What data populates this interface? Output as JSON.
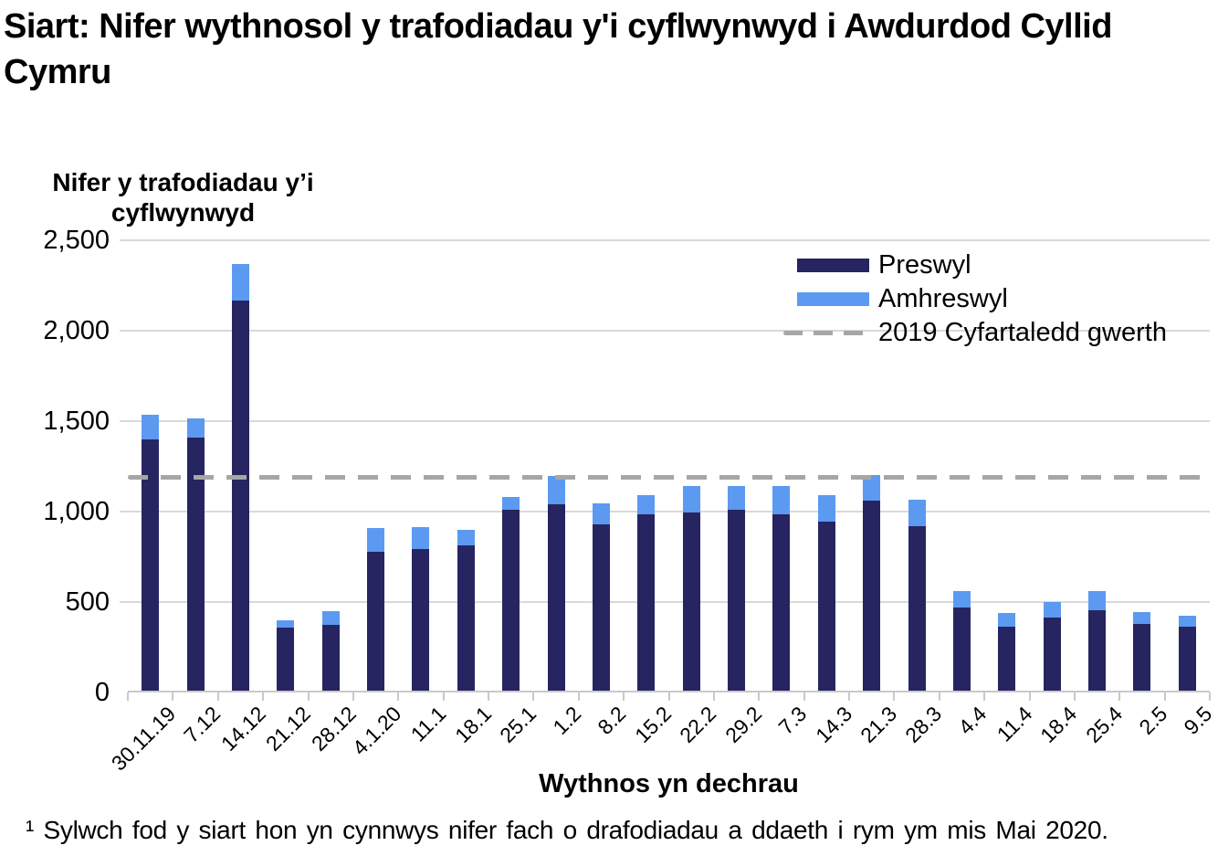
{
  "title": "Siart: Nifer wythnosol y trafodiadau y'i cyflwynwyd i Awdurdod Cyllid Cymru",
  "y_axis": {
    "label_line1": "Nifer y trafodiadau y’i",
    "label_line2": "cyflwynwyd"
  },
  "x_axis": {
    "title": "Wythnos yn dechrau"
  },
  "legend": {
    "items": [
      {
        "label": "Preswyl",
        "swatch": "solid-navy"
      },
      {
        "label": "Amhreswyl",
        "swatch": "solid-lightblue"
      },
      {
        "label": "2019 Cyfartaledd gwerth",
        "swatch": "dashed-gray"
      }
    ]
  },
  "footnote": "¹ Sylwch fod y siart hon yn cynnwys nifer fach o drafodiadau  a ddaeth  i rym ym mis Mai 2020.",
  "colors": {
    "preswyl": "#262561",
    "amhreswyl": "#5b9af0",
    "reference_line": "#a6a6a6",
    "gridline": "#d9d9d9"
  },
  "chart_data": {
    "type": "bar",
    "stacked": true,
    "title": "Siart: Nifer wythnosol y trafodiadau y'i cyflwynwyd i Awdurdod Cyllid Cymru",
    "xlabel": "Wythnos yn dechrau",
    "ylabel": "Nifer y trafodiadau y’i cyflwynwyd",
    "ylim": [
      0,
      2500
    ],
    "grid": "horizontal",
    "legend_position": "top-right",
    "y_ticks": [
      {
        "value": 0,
        "label": "0"
      },
      {
        "value": 500,
        "label": "500"
      },
      {
        "value": 1000,
        "label": "1,000"
      },
      {
        "value": 1500,
        "label": "1,500"
      },
      {
        "value": 2000,
        "label": "2,000"
      },
      {
        "value": 2500,
        "label": "2,500"
      }
    ],
    "categories": [
      "30.11.19",
      "7.12",
      "14.12",
      "21.12",
      "28.12",
      "4.1.20",
      "11.1",
      "18.1",
      "25.1",
      "1.2",
      "8.2",
      "15.2",
      "22.2",
      "29.2",
      "7.3",
      "14.3",
      "21.3",
      "28.3",
      "4.4",
      "11.4",
      "18.4",
      "25.4",
      "2.5",
      "9.5"
    ],
    "series": [
      {
        "name": "Preswyl",
        "color": "#262561",
        "values": [
          1390,
          1400,
          2155,
          350,
          365,
          770,
          785,
          805,
          1000,
          1030,
          920,
          975,
          985,
          1000,
          975,
          935,
          1050,
          910,
          460,
          355,
          405,
          445,
          370,
          355
        ]
      },
      {
        "name": "Amhreswyl",
        "color": "#5b9af0",
        "values": [
          135,
          105,
          205,
          40,
          75,
          130,
          120,
          85,
          70,
          155,
          115,
          105,
          145,
          130,
          155,
          145,
          140,
          145,
          90,
          75,
          85,
          105,
          65,
          60
        ]
      }
    ],
    "reference_line": {
      "label": "2019 Cyfartaledd gwerth",
      "value": 1190,
      "color": "#a6a6a6",
      "style": "dashed"
    }
  }
}
